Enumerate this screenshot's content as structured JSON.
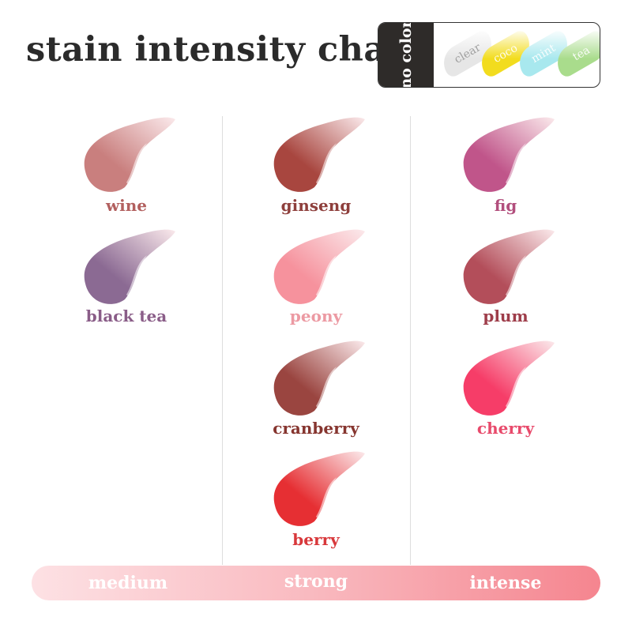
{
  "title": "stain intensity chart",
  "legend": {
    "label": "no color",
    "items": [
      {
        "name": "clear",
        "color": "#e6e6e6"
      },
      {
        "name": "coco",
        "color": "#f2dc1e"
      },
      {
        "name": "mint",
        "color": "#a8e8ee"
      },
      {
        "name": "tea",
        "color": "#a9dc8c"
      }
    ]
  },
  "columns": [
    {
      "level": "medium",
      "shades": [
        {
          "name": "wine",
          "color": "#c97f7e",
          "text": "#b2605f"
        },
        {
          "name": "black tea",
          "color": "#8b6a93",
          "text": "#8a5d88"
        }
      ]
    },
    {
      "level": "strong",
      "shades": [
        {
          "name": "ginseng",
          "color": "#a8463f",
          "text": "#8e3f3c"
        },
        {
          "name": "peony",
          "color": "#f6929d",
          "text": "#ec9aa3"
        },
        {
          "name": "cranberry",
          "color": "#9a4540",
          "text": "#86352f"
        },
        {
          "name": "berry",
          "color": "#e62f33",
          "text": "#d8383b"
        }
      ]
    },
    {
      "level": "intense",
      "shades": [
        {
          "name": "fig",
          "color": "#c0558a",
          "text": "#b24f7d"
        },
        {
          "name": "plum",
          "color": "#b34e5a",
          "text": "#9e3d4a"
        },
        {
          "name": "cherry",
          "color": "#f63d68",
          "text": "#e84a6b"
        }
      ]
    }
  ]
}
